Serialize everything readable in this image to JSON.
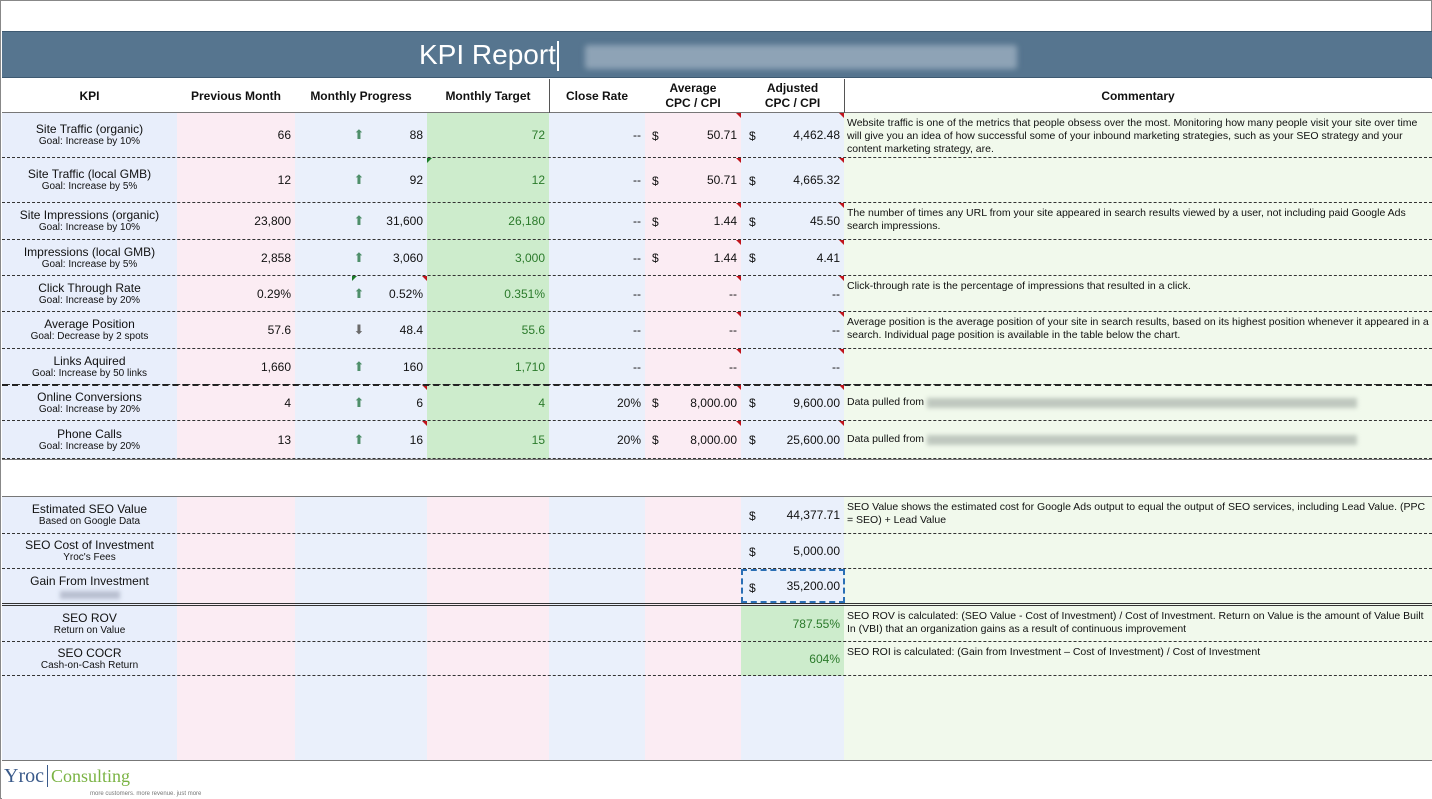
{
  "title": "KPI Report",
  "headers": {
    "kpi": "KPI",
    "prev": "Previous Month",
    "prog": "Monthly Progress",
    "targ": "Monthly Target",
    "close": "Close Rate",
    "avg1": "Average",
    "avg2": "CPC / CPI",
    "adj1": "Adjusted",
    "adj2": "CPC / CPI",
    "comm": "Commentary"
  },
  "colors": {
    "title_band": "#56758f",
    "target_green": "#cdeccc",
    "up_arrow": "#4f8f6a"
  },
  "rows": [
    {
      "name": "Site Traffic (organic)",
      "goal": "Goal: Increase by 10%",
      "prev": "66",
      "dir": "up",
      "prog": "88",
      "targ": "72",
      "close": "--",
      "avg_d": "$",
      "avg": "50.71",
      "adj_d": "$",
      "adj": "4,462.48",
      "comm": "Website traffic is one of the metrics that people obsess over the most. Monitoring how many people visit your site over time will give you an idea of how successful some of your inbound marketing strategies, such as your SEO strategy and your content marketing strategy, are."
    },
    {
      "name": "Site Traffic (local GMB)",
      "goal": "Goal: Increase by 5%",
      "prev": "12",
      "dir": "up",
      "prog": "92",
      "targ": "12",
      "close": "--",
      "avg_d": "$",
      "avg": "50.71",
      "adj_d": "$",
      "adj": "4,665.32",
      "comm": ""
    },
    {
      "name": "Site Impressions (organic)",
      "goal": "Goal: Increase by 10%",
      "prev": "23,800",
      "dir": "up",
      "prog": "31,600",
      "targ": "26,180",
      "close": "--",
      "avg_d": "$",
      "avg": "1.44",
      "adj_d": "$",
      "adj": "45.50",
      "comm": "The number of times any URL from your site appeared in search results viewed by a user, not including paid Google Ads search impressions."
    },
    {
      "name": "Impressions (local GMB)",
      "goal": "Goal: Increase by 5%",
      "prev": "2,858",
      "dir": "up",
      "prog": "3,060",
      "targ": "3,000",
      "close": "--",
      "avg_d": "$",
      "avg": "1.44",
      "adj_d": "$",
      "adj": "4.41",
      "comm": ""
    },
    {
      "name": "Click Through Rate",
      "goal": "Goal: Increase by 20%",
      "prev": "0.29%",
      "dir": "up",
      "prog": "0.52%",
      "targ": "0.351%",
      "close": "--",
      "avg_d": "",
      "avg": "--",
      "adj_d": "",
      "adj": "--",
      "comm": "Click-through rate is the percentage of impressions that resulted in a click."
    },
    {
      "name": "Average Position",
      "goal": "Goal: Decrease by 2 spots",
      "prev": "57.6",
      "dir": "down",
      "prog": "48.4",
      "targ": "55.6",
      "close": "--",
      "avg_d": "",
      "avg": "--",
      "adj_d": "",
      "adj": "--",
      "comm": "Average position is the average position of your site in search results, based on its highest position whenever it appeared in a search. Individual page position is available in the table below the chart."
    },
    {
      "name": "Links Aquired",
      "goal": "Goal: Increase by 50 links",
      "prev": "1,660",
      "dir": "up",
      "prog": "160",
      "targ": "1,710",
      "close": "--",
      "avg_d": "",
      "avg": "--",
      "adj_d": "",
      "adj": "--",
      "comm": ""
    },
    {
      "name": "Online Conversions",
      "goal": "Goal: Increase by 20%",
      "prev": "4",
      "dir": "up",
      "prog": "6",
      "targ": "4",
      "close": "20%",
      "avg_d": "$",
      "avg": "8,000.00",
      "adj_d": "$",
      "adj": "9,600.00",
      "comm": "Data pulled from"
    },
    {
      "name": "Phone Calls",
      "goal": "Goal: Increase by 20%",
      "prev": "13",
      "dir": "up",
      "prog": "16",
      "targ": "15",
      "close": "20%",
      "avg_d": "$",
      "avg": "8,000.00",
      "adj_d": "$",
      "adj": "25,600.00",
      "comm": "Data pulled from"
    }
  ],
  "summary": [
    {
      "name": "Estimated SEO Value",
      "sub": "Based on Google Data",
      "dollar": "$",
      "value": "44,377.71",
      "comm": "SEO Value shows the estimated cost for Google Ads output to equal the output of SEO services, including Lead Value. (PPC = SEO) + Lead Value"
    },
    {
      "name": "SEO Cost of Investment",
      "sub": "Yroc's Fees",
      "dollar": "$",
      "value": "5,000.00",
      "comm": ""
    },
    {
      "name": "Gain From Investment",
      "sub": "",
      "dollar": "$",
      "value": "35,200.00",
      "comm": ""
    },
    {
      "name": "SEO ROV",
      "sub": "Return on Value",
      "dollar": "",
      "value": "787.55%",
      "comm": "SEO ROV is calculated: (SEO Value - Cost of Investment) / Cost of Investment. Return on Value is the amount of Value Built In (VBI) that an organization gains as a result of continuous improvement"
    },
    {
      "name": "SEO COCR",
      "sub": "Cash-on-Cash Return",
      "dollar": "",
      "value": "604%",
      "comm": "SEO ROI is calculated: (Gain from Investment – Cost of Investment) / Cost of Investment"
    }
  ],
  "logo": {
    "part1": "Yroc",
    "part2": "Consulting",
    "tagline": "more customers. more revenue. just more"
  }
}
